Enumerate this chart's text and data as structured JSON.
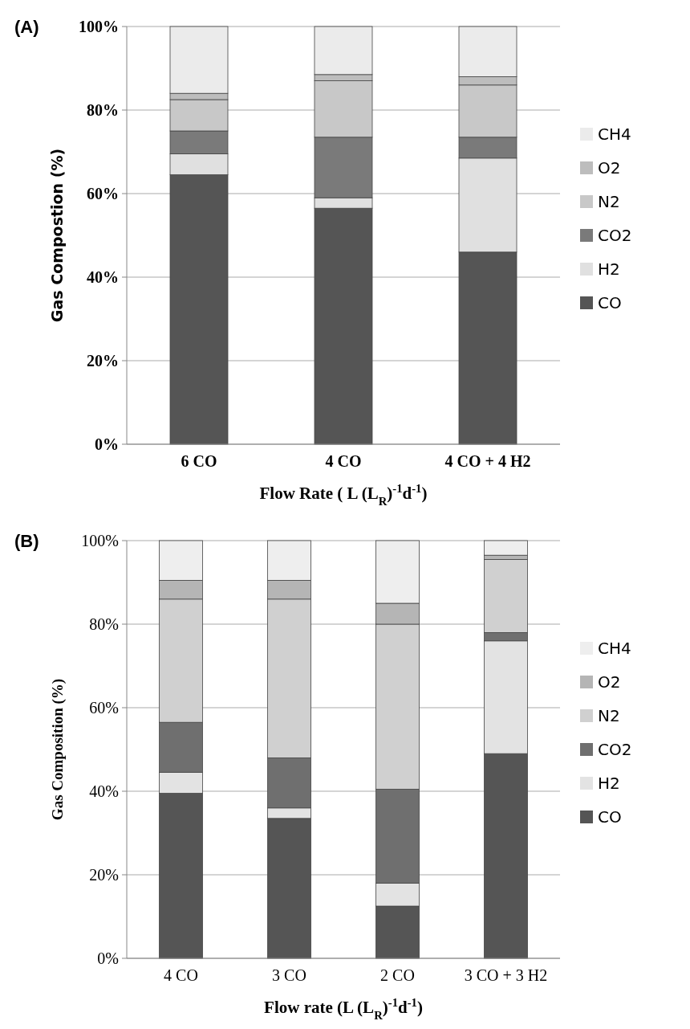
{
  "chart_data": [
    {
      "type": "bar",
      "title": "(A)",
      "xlabel": "Flow Rate ( L (L$_{R}$)$^{-1}$d$^{-1}$)",
      "ylabel": "Gas Compostion (%)",
      "stacked": true,
      "grid": "y",
      "legend": "right",
      "categories": [
        "6 CO",
        "4 CO",
        "4 CO + 4 H2"
      ],
      "ylim": [
        0,
        100
      ],
      "yticks": [
        {
          "value": 0,
          "label": "0%"
        },
        {
          "value": 20,
          "label": "20%"
        },
        {
          "value": 40,
          "label": "40%"
        },
        {
          "value": 60,
          "label": "60%"
        },
        {
          "value": 80,
          "label": "80%"
        },
        {
          "value": 100,
          "label": "100%"
        }
      ],
      "series": [
        {
          "name": "CO",
          "color": "#555555",
          "values": [
            64.5,
            56.5,
            46
          ]
        },
        {
          "name": "H2",
          "color": "#e0e0e0",
          "values": [
            5,
            2.5,
            22.5
          ]
        },
        {
          "name": "CO2",
          "color": "#7a7a7a",
          "values": [
            5.5,
            14.5,
            5
          ]
        },
        {
          "name": "N2",
          "color": "#c8c8c8",
          "values": [
            7.5,
            13.5,
            12.5
          ]
        },
        {
          "name": "O2",
          "color": "#bdbdbd",
          "values": [
            1.5,
            1.5,
            2
          ]
        },
        {
          "name": "CH4",
          "color": "#ebebeb",
          "values": [
            16,
            11.5,
            12
          ]
        }
      ]
    },
    {
      "type": "bar",
      "title": "(B)",
      "xlabel": "Flow rate (L (L$_{R}$)$^{-1}$d$^{-1}$)",
      "ylabel": "Gas Composition (%)",
      "stacked": true,
      "grid": "y",
      "legend": "right",
      "categories": [
        "4 CO",
        "3 CO",
        "2 CO",
        "3 CO + 3 H2"
      ],
      "ylim": [
        0,
        100
      ],
      "yticks": [
        {
          "value": 0,
          "label": "0%"
        },
        {
          "value": 20,
          "label": "20%"
        },
        {
          "value": 40,
          "label": "40%"
        },
        {
          "value": 60,
          "label": "60%"
        },
        {
          "value": 80,
          "label": "80%"
        },
        {
          "value": 100,
          "label": "100%"
        }
      ],
      "series": [
        {
          "name": "CO",
          "color": "#555555",
          "values": [
            39.5,
            33.5,
            12.5,
            49
          ]
        },
        {
          "name": "H2",
          "color": "#e3e3e3",
          "values": [
            5,
            2.5,
            5.5,
            27
          ]
        },
        {
          "name": "CO2",
          "color": "#6f6f6f",
          "values": [
            12,
            12,
            22.5,
            2
          ]
        },
        {
          "name": "N2",
          "color": "#d0d0d0",
          "values": [
            29.5,
            38,
            39.5,
            17.5
          ]
        },
        {
          "name": "O2",
          "color": "#b5b5b5",
          "values": [
            4.5,
            4.5,
            5,
            1
          ]
        },
        {
          "name": "CH4",
          "color": "#eeeeee",
          "values": [
            9.5,
            9.5,
            15,
            3.5
          ]
        }
      ]
    }
  ]
}
